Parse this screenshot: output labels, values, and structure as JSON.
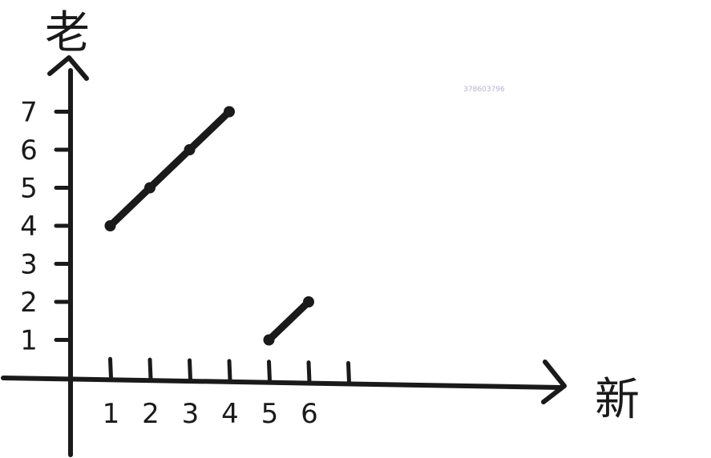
{
  "chart_data": {
    "type": "line",
    "title": "",
    "xlabel": "新",
    "ylabel": "老",
    "xlim": [
      0,
      7
    ],
    "ylim": [
      0,
      7
    ],
    "x_ticks": [
      1,
      2,
      3,
      4,
      5,
      6,
      7
    ],
    "x_tick_labels": [
      "1",
      "2",
      "3",
      "4",
      "5",
      "6",
      ""
    ],
    "y_ticks": [
      1,
      2,
      3,
      4,
      5,
      6,
      7
    ],
    "y_tick_labels": [
      "1",
      "2",
      "3",
      "4",
      "5",
      "6",
      "7"
    ],
    "series": [
      {
        "x": [
          1,
          2,
          3,
          4
        ],
        "y": [
          4,
          5,
          6,
          7
        ]
      },
      {
        "x": [
          5,
          6
        ],
        "y": [
          1,
          2
        ]
      }
    ],
    "grid": false,
    "style": "handwritten",
    "color": "#1a1a1a"
  },
  "watermark": "378603796"
}
